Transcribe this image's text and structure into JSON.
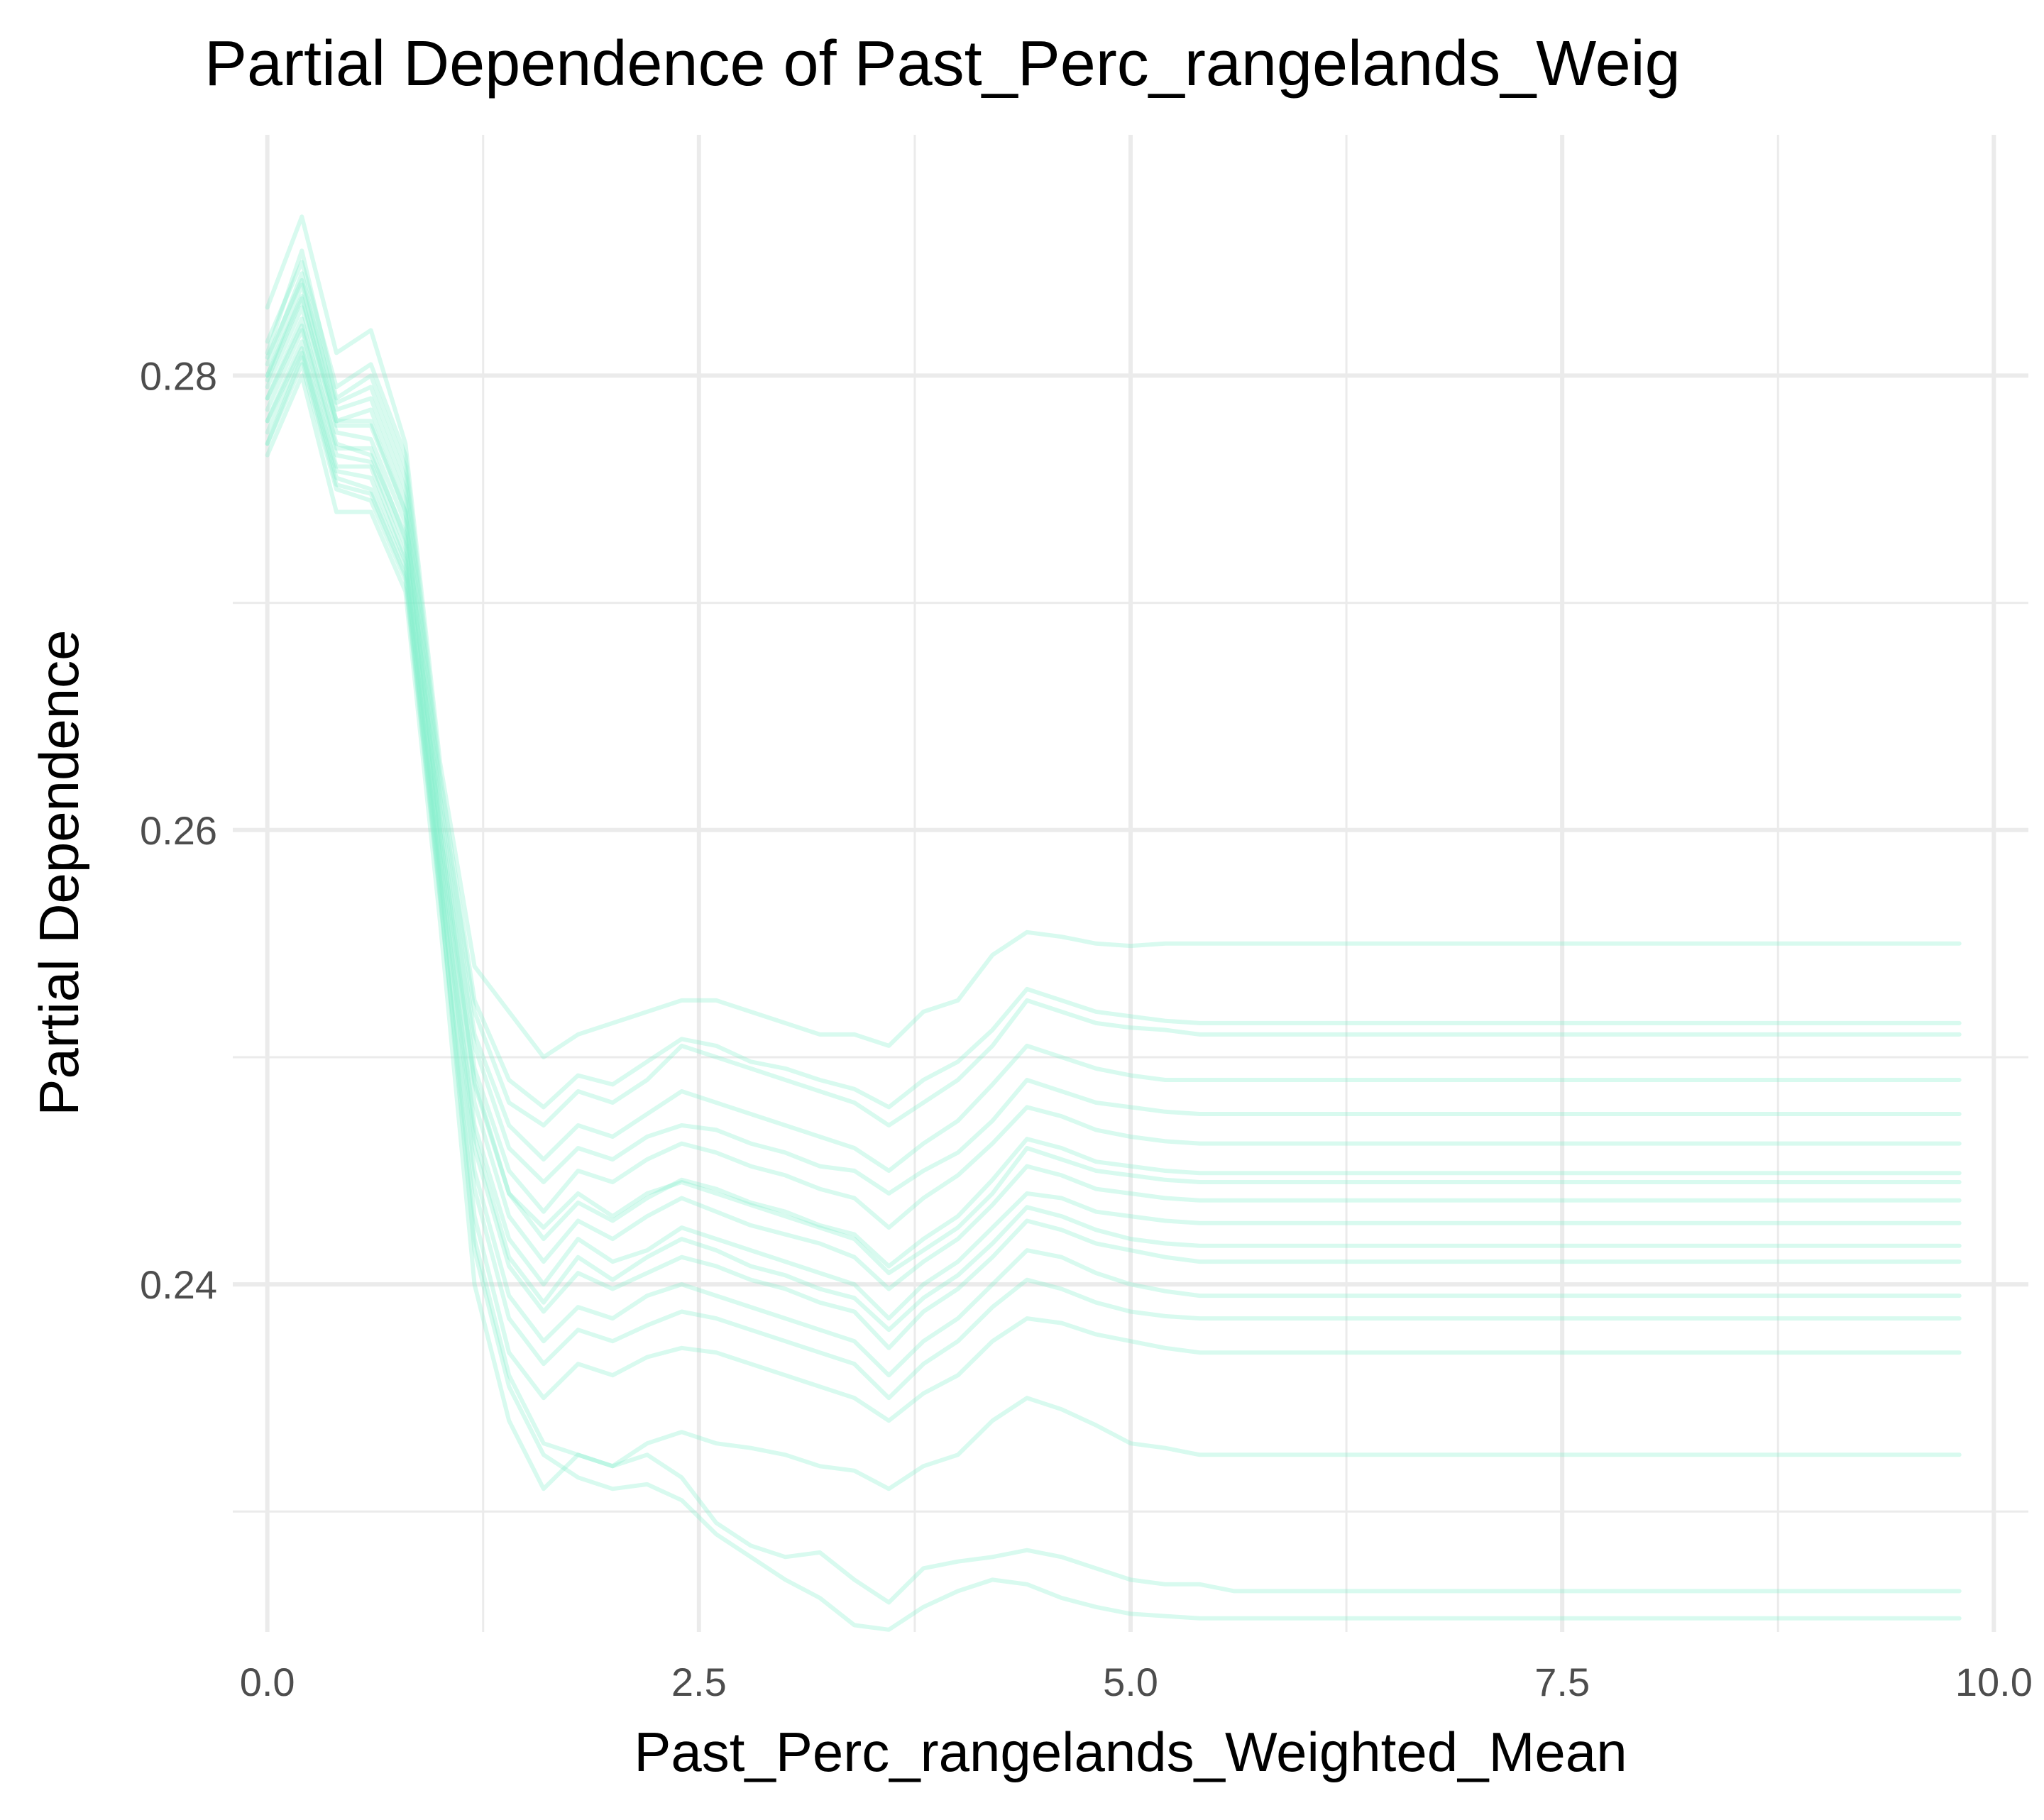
{
  "chart_data": {
    "type": "line",
    "title": "Partial Dependence of Past_Perc_rangelands_Weig",
    "xlabel": "Past_Perc_rangelands_Weighted_Mean",
    "ylabel": "Partial Dependence",
    "xlim": [
      -0.2,
      10.2
    ],
    "ylim": [
      0.2247,
      0.2906
    ],
    "x_ticks": [
      0.0,
      2.5,
      5.0,
      7.5,
      10.0
    ],
    "x_tick_labels": [
      "0.0",
      "2.5",
      "5.0",
      "7.5",
      "10.0"
    ],
    "y_ticks": [
      0.24,
      0.26,
      0.28
    ],
    "y_tick_labels": [
      "0.24",
      "0.26",
      "0.28"
    ],
    "grid": true,
    "line_color": "#7feecb",
    "line_opacity": 0.3,
    "x": [
      0.0,
      0.2,
      0.4,
      0.6,
      0.8,
      1.0,
      1.2,
      1.4,
      1.6,
      1.8,
      2.0,
      2.2,
      2.4,
      2.6,
      2.8,
      3.0,
      3.2,
      3.4,
      3.6,
      3.8,
      4.0,
      4.2,
      4.4,
      4.6,
      4.8,
      5.0,
      5.2,
      5.4,
      5.6,
      5.8,
      6.0,
      6.5,
      7.0,
      7.5,
      8.0,
      8.5,
      9.0,
      9.8
    ],
    "series": [
      {
        "values": [
          0.28,
          0.2835,
          0.278,
          0.278,
          0.274,
          0.26,
          0.249,
          0.244,
          0.2425,
          0.244,
          0.243,
          0.244,
          0.2445,
          0.244,
          0.2435,
          0.243,
          0.2425,
          0.242,
          0.2405,
          0.2415,
          0.2425,
          0.244,
          0.246,
          0.2455,
          0.245,
          0.2448,
          0.2446,
          0.2445,
          0.2445,
          0.2445,
          0.2445,
          0.2445,
          0.2445,
          0.2445,
          0.2445,
          0.2445,
          0.2445,
          0.2445
        ]
      },
      {
        "values": [
          0.281,
          0.2855,
          0.279,
          0.28,
          0.276,
          0.262,
          0.252,
          0.248,
          0.247,
          0.2485,
          0.248,
          0.249,
          0.2505,
          0.25,
          0.2495,
          0.249,
          0.2485,
          0.248,
          0.247,
          0.248,
          0.249,
          0.2505,
          0.2525,
          0.252,
          0.2515,
          0.2513,
          0.2512,
          0.251,
          0.251,
          0.251,
          0.251,
          0.251,
          0.251,
          0.251,
          0.251,
          0.251,
          0.251,
          0.251
        ]
      },
      {
        "values": [
          0.283,
          0.287,
          0.281,
          0.282,
          0.277,
          0.263,
          0.254,
          0.252,
          0.25,
          0.251,
          0.2515,
          0.252,
          0.2525,
          0.2525,
          0.252,
          0.2515,
          0.251,
          0.251,
          0.2505,
          0.252,
          0.2525,
          0.2545,
          0.2555,
          0.2553,
          0.255,
          0.2549,
          0.255,
          0.255,
          0.255,
          0.255,
          0.255,
          0.255,
          0.255,
          0.255,
          0.255,
          0.255,
          0.255,
          0.255
        ]
      },
      {
        "values": [
          0.279,
          0.2825,
          0.277,
          0.2765,
          0.273,
          0.259,
          0.247,
          0.242,
          0.24,
          0.242,
          0.241,
          0.2415,
          0.2425,
          0.242,
          0.2415,
          0.241,
          0.2405,
          0.24,
          0.2385,
          0.24,
          0.241,
          0.2425,
          0.244,
          0.2438,
          0.2432,
          0.243,
          0.2428,
          0.2427,
          0.2427,
          0.2427,
          0.2427,
          0.2427,
          0.2427,
          0.2427,
          0.2427,
          0.2427,
          0.2427,
          0.2427
        ]
      },
      {
        "values": [
          0.278,
          0.2815,
          0.276,
          0.276,
          0.272,
          0.258,
          0.245,
          0.2395,
          0.2375,
          0.239,
          0.2385,
          0.2395,
          0.24,
          0.2395,
          0.239,
          0.2385,
          0.238,
          0.2375,
          0.236,
          0.2375,
          0.2385,
          0.24,
          0.2415,
          0.2412,
          0.2405,
          0.24,
          0.2397,
          0.2395,
          0.2395,
          0.2395,
          0.2395,
          0.2395,
          0.2395,
          0.2395,
          0.2395,
          0.2395,
          0.2395,
          0.2395
        ]
      },
      {
        "values": [
          0.277,
          0.2805,
          0.275,
          0.2745,
          0.271,
          0.257,
          0.243,
          0.237,
          0.235,
          0.2365,
          0.236,
          0.2368,
          0.2372,
          0.237,
          0.2365,
          0.236,
          0.2355,
          0.235,
          0.234,
          0.2352,
          0.236,
          0.2375,
          0.2385,
          0.2383,
          0.2378,
          0.2375,
          0.2372,
          0.237,
          0.237,
          0.237,
          0.237,
          0.237,
          0.237,
          0.237,
          0.237,
          0.237,
          0.237,
          0.237
        ]
      },
      {
        "values": [
          0.2765,
          0.28,
          0.274,
          0.274,
          0.2705,
          0.256,
          0.24,
          0.234,
          0.231,
          0.2325,
          0.232,
          0.233,
          0.2335,
          0.233,
          0.2328,
          0.2325,
          0.232,
          0.2318,
          0.231,
          0.232,
          0.2325,
          0.234,
          0.235,
          0.2345,
          0.2338,
          0.233,
          0.2328,
          0.2325,
          0.2325,
          0.2325,
          0.2325,
          0.2325,
          0.2325,
          0.2325,
          0.2325,
          0.2325,
          0.2325,
          0.2325
        ]
      },
      {
        "values": [
          0.2775,
          0.281,
          0.2755,
          0.275,
          0.2715,
          0.2575,
          0.242,
          0.236,
          0.233,
          0.2325,
          0.232,
          0.2325,
          0.2315,
          0.2295,
          0.2285,
          0.228,
          0.2282,
          0.227,
          0.226,
          0.2275,
          0.2278,
          0.228,
          0.2283,
          0.228,
          0.2275,
          0.227,
          0.2268,
          0.2268,
          0.2265,
          0.2265,
          0.2265,
          0.2265,
          0.2265,
          0.2265,
          0.2265,
          0.2265,
          0.2265,
          0.2265
        ]
      },
      {
        "values": [
          0.277,
          0.2808,
          0.2752,
          0.2748,
          0.2712,
          0.2572,
          0.2415,
          0.2355,
          0.2325,
          0.2315,
          0.231,
          0.2312,
          0.2305,
          0.229,
          0.228,
          0.227,
          0.2262,
          0.225,
          0.2248,
          0.2258,
          0.2265,
          0.227,
          0.2268,
          0.2262,
          0.2258,
          0.2255,
          0.2254,
          0.2253,
          0.2253,
          0.2253,
          0.2253,
          0.2253,
          0.2253,
          0.2253,
          0.2253,
          0.2253,
          0.2253,
          0.2253
        ]
      },
      {
        "values": [
          0.2805,
          0.2845,
          0.2785,
          0.279,
          0.275,
          0.261,
          0.2505,
          0.246,
          0.2445,
          0.246,
          0.2455,
          0.2465,
          0.247,
          0.2468,
          0.2462,
          0.2458,
          0.2452,
          0.245,
          0.244,
          0.245,
          0.2458,
          0.2472,
          0.249,
          0.2485,
          0.248,
          0.2478,
          0.2476,
          0.2475,
          0.2475,
          0.2475,
          0.2475,
          0.2475,
          0.2475,
          0.2475,
          0.2475,
          0.2475,
          0.2475,
          0.2475
        ]
      },
      {
        "values": [
          0.2795,
          0.283,
          0.2775,
          0.2772,
          0.2735,
          0.2595,
          0.248,
          0.243,
          0.241,
          0.2428,
          0.242,
          0.243,
          0.2438,
          0.2432,
          0.2426,
          0.2422,
          0.2418,
          0.2412,
          0.2398,
          0.241,
          0.242,
          0.2435,
          0.2452,
          0.2448,
          0.2442,
          0.244,
          0.2438,
          0.2437,
          0.2437,
          0.2437,
          0.2437,
          0.2437,
          0.2437,
          0.2437,
          0.2437,
          0.2437,
          0.2437,
          0.2437
        ]
      },
      {
        "values": [
          0.2785,
          0.282,
          0.2765,
          0.2762,
          0.2725,
          0.2585,
          0.246,
          0.2408,
          0.2388,
          0.2405,
          0.2398,
          0.2405,
          0.2412,
          0.2408,
          0.2402,
          0.2398,
          0.2392,
          0.2388,
          0.2372,
          0.2388,
          0.2398,
          0.2412,
          0.2428,
          0.2424,
          0.2418,
          0.2415,
          0.2412,
          0.241,
          0.241,
          0.241,
          0.241,
          0.241,
          0.241,
          0.241,
          0.241,
          0.241,
          0.241,
          0.241
        ]
      },
      {
        "values": [
          0.28,
          0.284,
          0.278,
          0.2785,
          0.2745,
          0.2605,
          0.2495,
          0.245,
          0.2432,
          0.245,
          0.2445,
          0.2455,
          0.2462,
          0.2458,
          0.2452,
          0.2448,
          0.2442,
          0.2438,
          0.2425,
          0.2438,
          0.2448,
          0.2462,
          0.2478,
          0.2474,
          0.2468,
          0.2465,
          0.2463,
          0.2462,
          0.2462,
          0.2462,
          0.2462,
          0.2462,
          0.2462,
          0.2462,
          0.2462,
          0.2462,
          0.2462,
          0.2462
        ]
      },
      {
        "values": [
          0.2815,
          0.285,
          0.2795,
          0.2805,
          0.2765,
          0.2625,
          0.2525,
          0.249,
          0.2478,
          0.2492,
          0.2488,
          0.2498,
          0.2508,
          0.2505,
          0.2498,
          0.2495,
          0.249,
          0.2486,
          0.2478,
          0.249,
          0.2498,
          0.2512,
          0.253,
          0.2525,
          0.252,
          0.2518,
          0.2516,
          0.2515,
          0.2515,
          0.2515,
          0.2515,
          0.2515,
          0.2515,
          0.2515,
          0.2515,
          0.2515,
          0.2515,
          0.2515
        ]
      },
      {
        "values": [
          0.2808,
          0.2842,
          0.2788,
          0.2795,
          0.2755,
          0.2615,
          0.251,
          0.247,
          0.2455,
          0.247,
          0.2465,
          0.2475,
          0.2485,
          0.248,
          0.2475,
          0.247,
          0.2465,
          0.246,
          0.245,
          0.2462,
          0.2472,
          0.2488,
          0.2505,
          0.25,
          0.2495,
          0.2492,
          0.249,
          0.249,
          0.249,
          0.249,
          0.249,
          0.249,
          0.249,
          0.249,
          0.249,
          0.249,
          0.249,
          0.249
        ]
      },
      {
        "values": [
          0.279,
          0.2822,
          0.2768,
          0.2768,
          0.2728,
          0.2588,
          0.2465,
          0.2412,
          0.2392,
          0.2412,
          0.2402,
          0.2412,
          0.242,
          0.2415,
          0.2408,
          0.2404,
          0.2398,
          0.2394,
          0.238,
          0.2394,
          0.2404,
          0.2418,
          0.2434,
          0.243,
          0.2424,
          0.242,
          0.2418,
          0.2417,
          0.2417,
          0.2417,
          0.2417,
          0.2417,
          0.2417,
          0.2417,
          0.2417,
          0.2417,
          0.2417,
          0.2417
        ]
      },
      {
        "values": [
          0.278,
          0.2812,
          0.2758,
          0.2755,
          0.2718,
          0.2578,
          0.2442,
          0.2385,
          0.2365,
          0.238,
          0.2375,
          0.2382,
          0.2388,
          0.2385,
          0.238,
          0.2375,
          0.237,
          0.2365,
          0.235,
          0.2365,
          0.2375,
          0.239,
          0.2402,
          0.2398,
          0.2392,
          0.2388,
          0.2386,
          0.2385,
          0.2385,
          0.2385,
          0.2385,
          0.2385,
          0.2385,
          0.2385,
          0.2385,
          0.2385,
          0.2385,
          0.2385
        ]
      },
      {
        "values": [
          0.2798,
          0.2834,
          0.2778,
          0.2778,
          0.274,
          0.26,
          0.2488,
          0.244,
          0.242,
          0.2436,
          0.2428,
          0.2438,
          0.2446,
          0.2442,
          0.2436,
          0.2432,
          0.2426,
          0.2422,
          0.2408,
          0.242,
          0.243,
          0.2446,
          0.2464,
          0.246,
          0.2454,
          0.2452,
          0.245,
          0.2449,
          0.2449,
          0.2449,
          0.2449,
          0.2449,
          0.2449,
          0.2449,
          0.2449,
          0.2449,
          0.2449,
          0.2449
        ]
      }
    ]
  }
}
